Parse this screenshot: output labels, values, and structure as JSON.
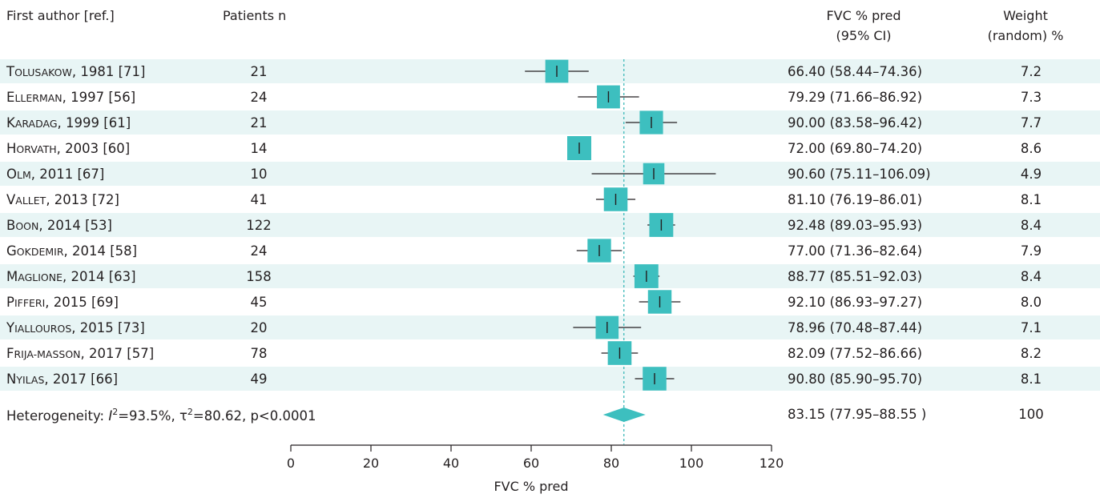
{
  "chart_data": {
    "type": "forest",
    "columns": {
      "author": "First author [ref.]",
      "patients": "Patients n",
      "effect_line1": "FVC % pred",
      "effect_line2": "(95% CI)",
      "weight_line1": "Weight",
      "weight_line2": "(random) %"
    },
    "studies": [
      {
        "author": "Tolusakow",
        "year": "1981",
        "ref": "[71]",
        "n": "21",
        "mean": 66.4,
        "lo": 58.44,
        "hi": 74.36,
        "ci_text": "66.40 (58.44–74.36)",
        "weight": 7.2,
        "weight_text": "7.2"
      },
      {
        "author": "Ellerman",
        "year": "1997",
        "ref": "[56]",
        "n": "24",
        "mean": 79.29,
        "lo": 71.66,
        "hi": 86.92,
        "ci_text": "79.29 (71.66–86.92)",
        "weight": 7.3,
        "weight_text": "7.3"
      },
      {
        "author": "Karadag",
        "year": "1999",
        "ref": "[61]",
        "n": "21",
        "mean": 90.0,
        "lo": 83.58,
        "hi": 96.42,
        "ci_text": "90.00 (83.58–96.42)",
        "weight": 7.7,
        "weight_text": "7.7"
      },
      {
        "author": "Horvath",
        "year": "2003",
        "ref": "[60]",
        "n": "14",
        "mean": 72.0,
        "lo": 69.8,
        "hi": 74.2,
        "ci_text": "72.00 (69.80–74.20)",
        "weight": 8.6,
        "weight_text": "8.6"
      },
      {
        "author": "Olm",
        "year": "2011",
        "ref": "[67]",
        "n": "10",
        "mean": 90.6,
        "lo": 75.11,
        "hi": 106.09,
        "ci_text": "90.60 (75.11–106.09)",
        "weight": 4.9,
        "weight_text": "4.9"
      },
      {
        "author": "Vallet",
        "year": "2013",
        "ref": "[72]",
        "n": "41",
        "mean": 81.1,
        "lo": 76.19,
        "hi": 86.01,
        "ci_text": "81.10 (76.19–86.01)",
        "weight": 8.1,
        "weight_text": "8.1"
      },
      {
        "author": "Boon",
        "year": "2014",
        "ref": "[53]",
        "n": "122",
        "mean": 92.48,
        "lo": 89.03,
        "hi": 95.93,
        "ci_text": "92.48 (89.03–95.93)",
        "weight": 8.4,
        "weight_text": "8.4"
      },
      {
        "author": "Gokdemir",
        "year": "2014",
        "ref": "[58]",
        "n": "24",
        "mean": 77.0,
        "lo": 71.36,
        "hi": 82.64,
        "ci_text": "77.00 (71.36–82.64)",
        "weight": 7.9,
        "weight_text": "7.9"
      },
      {
        "author": "Maglione",
        "year": "2014",
        "ref": "[63]",
        "n": "158",
        "mean": 88.77,
        "lo": 85.51,
        "hi": 92.03,
        "ci_text": "88.77 (85.51–92.03)",
        "weight": 8.4,
        "weight_text": "8.4"
      },
      {
        "author": "Pifferi",
        "year": "2015",
        "ref": "[69]",
        "n": "45",
        "mean": 92.1,
        "lo": 86.93,
        "hi": 97.27,
        "ci_text": "92.10 (86.93–97.27)",
        "weight": 8.0,
        "weight_text": "8.0"
      },
      {
        "author": "Yiallouros",
        "year": "2015",
        "ref": "[73]",
        "n": "20",
        "mean": 78.96,
        "lo": 70.48,
        "hi": 87.44,
        "ci_text": "78.96 (70.48–87.44)",
        "weight": 7.1,
        "weight_text": "7.1"
      },
      {
        "author": "Frija-Masson",
        "year": "2017",
        "ref": "[57]",
        "n": "78",
        "mean": 82.09,
        "lo": 77.52,
        "hi": 86.66,
        "ci_text": "82.09 (77.52–86.66)",
        "weight": 8.2,
        "weight_text": "8.2"
      },
      {
        "author": "Nyilas",
        "year": "2017",
        "ref": "[66]",
        "n": "49",
        "mean": 90.8,
        "lo": 85.9,
        "hi": 95.7,
        "ci_text": "90.80 (85.90–95.70)",
        "weight": 8.1,
        "weight_text": "8.1"
      }
    ],
    "summary": {
      "heterogeneity_prefix": "Heterogeneity: ",
      "i2_symbol": "I",
      "i2_value": "=93.5%, ",
      "tau2_symbol": "τ",
      "tau2_value": "=80.62, p<0.0001",
      "sup": "2",
      "mean": 83.15,
      "lo": 77.95,
      "hi": 88.55,
      "ci_text": "83.15 (77.95–88.55 )",
      "weight_text": "100"
    },
    "x_axis": {
      "label": "FVC % pred",
      "ticks": [
        0,
        20,
        40,
        60,
        80,
        100,
        120
      ],
      "range": [
        0,
        120
      ]
    },
    "colors": {
      "marker": "#3dbfbf",
      "row_band": "#e8f5f5",
      "text": "#231f20",
      "reference_line": "#2fb4b4"
    }
  }
}
